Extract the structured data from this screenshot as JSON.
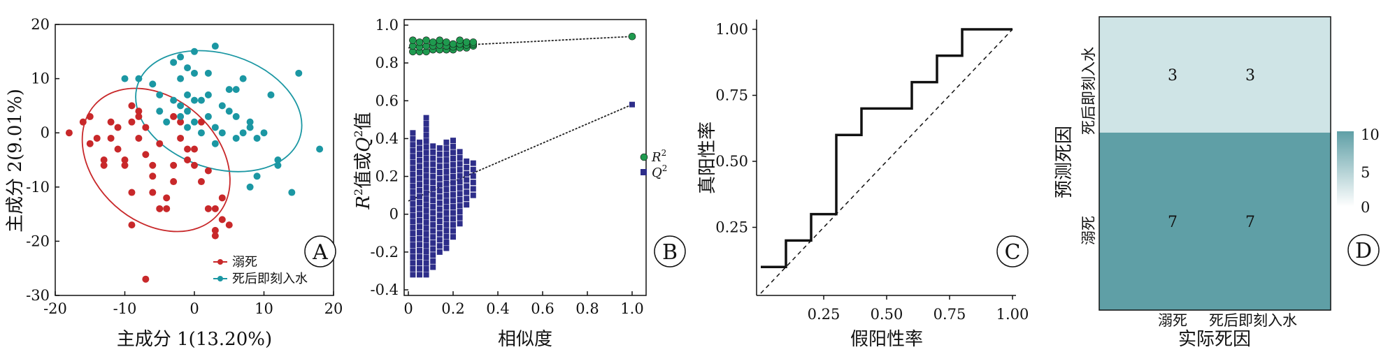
{
  "panels": {
    "A": {
      "letter": "A",
      "xlabel": "主成分 1(13.20%)",
      "ylabel": "主成分 2(9.01%)",
      "xlim": [
        -20,
        20
      ],
      "ylim": [
        -30,
        20
      ],
      "xticks": [
        -20,
        -10,
        0,
        10,
        20
      ],
      "yticks": [
        -30,
        -20,
        -10,
        0,
        10,
        20
      ],
      "legend": [
        {
          "label": "溺死",
          "color": "#c8282a"
        },
        {
          "label": "死后即刻入水",
          "color": "#1b97a3"
        }
      ]
    },
    "B": {
      "letter": "B",
      "xlabel": "相似度",
      "ylabel_parts": {
        "r": "R",
        "sup1": "2",
        "mid": "值或",
        "q": "Q",
        "sup2": "2",
        "end": "值"
      },
      "xlim": [
        0,
        1.0
      ],
      "ylim": [
        -0.4,
        1.0
      ],
      "xticks": [
        "0",
        "0.2",
        "0.4",
        "0.6",
        "0.8",
        "1.0"
      ],
      "yticks": [
        "-0.4",
        "-0.2",
        "0",
        "0.2",
        "0.4",
        "0.6",
        "0.8",
        "1.0"
      ],
      "legend": [
        {
          "label_main": "R",
          "label_sup": "2",
          "color": "#1f9a4f",
          "shape": "circle"
        },
        {
          "label_main": "Q",
          "label_sup": "2",
          "color": "#2e2e8a",
          "shape": "square"
        }
      ]
    },
    "C": {
      "letter": "C",
      "xlabel": "假阳性率",
      "ylabel": "真阳性率",
      "xticks": [
        "0.25",
        "0.50",
        "0.75",
        "1.00"
      ],
      "yticks": [
        "0.25",
        "0.50",
        "0.75",
        "1.00"
      ]
    },
    "D": {
      "letter": "D",
      "xlabel": "实际死因",
      "ylabel": "预测死因",
      "col_labels": [
        "溺死",
        "死后即刻入水"
      ],
      "row_labels": [
        "死后即刻入水",
        "溺死"
      ],
      "colorbar_ticks": [
        "10",
        "5",
        "0"
      ],
      "low_color": "#cfe4e6",
      "high_color": "#5f9fa6"
    }
  },
  "chart_data": [
    {
      "type": "scatter",
      "panel": "A",
      "series": [
        {
          "name": "溺死",
          "color": "#c8282a",
          "points": [
            [
              -7,
              -27
            ],
            [
              -18,
              0
            ],
            [
              -16,
              2
            ],
            [
              -15,
              3
            ],
            [
              -15,
              -2
            ],
            [
              -13,
              -5
            ],
            [
              -13,
              -6
            ],
            [
              -14,
              -1
            ],
            [
              -12,
              -1
            ],
            [
              -11,
              -3
            ],
            [
              -10,
              -5
            ],
            [
              -9,
              -11
            ],
            [
              -9,
              5
            ],
            [
              -9,
              2
            ],
            [
              -8,
              4
            ],
            [
              -8,
              -1
            ],
            [
              -7,
              -4
            ],
            [
              -7,
              1
            ],
            [
              -6,
              -8
            ],
            [
              -6,
              -11
            ],
            [
              -5,
              -2
            ],
            [
              -5,
              -14
            ],
            [
              -4,
              -12
            ],
            [
              -4,
              -14
            ],
            [
              -3,
              -6
            ],
            [
              -3,
              -9
            ],
            [
              -2,
              2
            ],
            [
              -2,
              -1
            ],
            [
              -1,
              -3
            ],
            [
              -1,
              -5
            ],
            [
              0,
              -6
            ],
            [
              1,
              -9
            ],
            [
              2,
              -7
            ],
            [
              2,
              -14
            ],
            [
              3,
              -19
            ],
            [
              3,
              -14
            ],
            [
              3,
              -18
            ],
            [
              4,
              -12
            ],
            [
              4,
              -16
            ],
            [
              5,
              -17
            ],
            [
              -9,
              -17
            ],
            [
              -6,
              -6
            ],
            [
              -10,
              -6
            ],
            [
              0,
              -3
            ],
            [
              -3,
              3
            ],
            [
              1,
              2
            ],
            [
              -11,
              1
            ],
            [
              -12,
              2
            ],
            [
              -8,
              3
            ]
          ]
        },
        {
          "name": "死后即刻入水",
          "color": "#1b97a3",
          "points": [
            [
              -10,
              10
            ],
            [
              -8,
              10
            ],
            [
              -6,
              9
            ],
            [
              -5,
              7
            ],
            [
              -5,
              4
            ],
            [
              -4,
              2
            ],
            [
              -3,
              6
            ],
            [
              -3,
              13
            ],
            [
              -2,
              5
            ],
            [
              -2,
              3
            ],
            [
              -2,
              10
            ],
            [
              -1,
              12
            ],
            [
              -1,
              4
            ],
            [
              -1,
              7
            ],
            [
              0,
              11
            ],
            [
              0,
              6
            ],
            [
              0,
              2
            ],
            [
              1,
              0
            ],
            [
              1,
              6
            ],
            [
              2,
              7
            ],
            [
              2,
              3
            ],
            [
              3,
              16
            ],
            [
              3,
              -2
            ],
            [
              4,
              0
            ],
            [
              5,
              4
            ],
            [
              5,
              8
            ],
            [
              6,
              8
            ],
            [
              6,
              3
            ],
            [
              6,
              -1
            ],
            [
              7,
              10
            ],
            [
              7,
              0
            ],
            [
              8,
              2
            ],
            [
              8,
              -10
            ],
            [
              9,
              -8
            ],
            [
              9,
              -1
            ],
            [
              11,
              7
            ],
            [
              12,
              -6
            ],
            [
              14,
              -11
            ],
            [
              15,
              11
            ],
            [
              18,
              -3
            ],
            [
              -2,
              14
            ],
            [
              0,
              15
            ],
            [
              4,
              5
            ],
            [
              -1,
              1
            ],
            [
              3,
              1
            ],
            [
              2,
              11
            ],
            [
              8,
              1
            ],
            [
              10,
              0
            ],
            [
              12,
              -5
            ]
          ]
        }
      ],
      "ellipses": [
        {
          "series": "溺死",
          "center": [
            -5.5,
            -5
          ],
          "color": "#c8282a"
        },
        {
          "series": "死后即刻入水",
          "center": [
            3.5,
            4
          ],
          "color": "#1b97a3"
        }
      ]
    },
    {
      "type": "scatter",
      "panel": "B",
      "series": [
        {
          "name": "R2",
          "color": "#1f9a4f",
          "x": [
            0.02,
            0.05,
            0.08,
            0.11,
            0.14,
            0.17,
            0.2,
            0.23,
            0.26,
            0.29,
            1.0
          ],
          "y": [
            0.92,
            0.91,
            0.92,
            0.91,
            0.92,
            0.91,
            0.9,
            0.92,
            0.91,
            0.91,
            0.94
          ],
          "spread_low": [
            0.86,
            0.86,
            0.86,
            0.87,
            0.87,
            0.87,
            0.87,
            0.88,
            0.88,
            0.89,
            0.94
          ]
        },
        {
          "name": "Q2",
          "color": "#2e2e8a",
          "x": [
            0.02,
            0.05,
            0.08,
            0.11,
            0.14,
            0.17,
            0.2,
            0.23,
            0.26,
            0.29,
            1.0
          ],
          "y_min": [
            -0.32,
            -0.32,
            -0.32,
            -0.28,
            -0.2,
            -0.18,
            -0.12,
            -0.05,
            0.05,
            0.1,
            0.58
          ],
          "y_max": [
            0.43,
            0.38,
            0.51,
            0.36,
            0.35,
            0.38,
            0.39,
            0.33,
            0.28,
            0.27,
            0.58
          ]
        }
      ],
      "fit_lines": [
        {
          "series": "R2",
          "x": [
            0,
            1.0
          ],
          "y": [
            0.88,
            0.94
          ]
        },
        {
          "series": "Q2",
          "x": [
            0,
            1.0
          ],
          "y": [
            0.07,
            0.58
          ]
        }
      ]
    },
    {
      "type": "line",
      "panel": "C",
      "fpr": [
        0,
        0.1,
        0.1,
        0.2,
        0.2,
        0.3,
        0.3,
        0.4,
        0.4,
        0.6,
        0.6,
        0.7,
        0.7,
        0.8,
        0.8,
        1.0
      ],
      "tpr": [
        0.1,
        0.1,
        0.2,
        0.2,
        0.3,
        0.3,
        0.6,
        0.6,
        0.7,
        0.7,
        0.8,
        0.8,
        0.9,
        0.9,
        1.0,
        1.0
      ],
      "diagonal": true
    },
    {
      "type": "heatmap",
      "panel": "D",
      "rows": [
        "死后即刻入水",
        "溺死"
      ],
      "cols": [
        "溺死",
        "死后即刻入水"
      ],
      "values": [
        [
          3,
          3
        ],
        [
          7,
          7
        ]
      ],
      "range": [
        0,
        10
      ]
    }
  ]
}
